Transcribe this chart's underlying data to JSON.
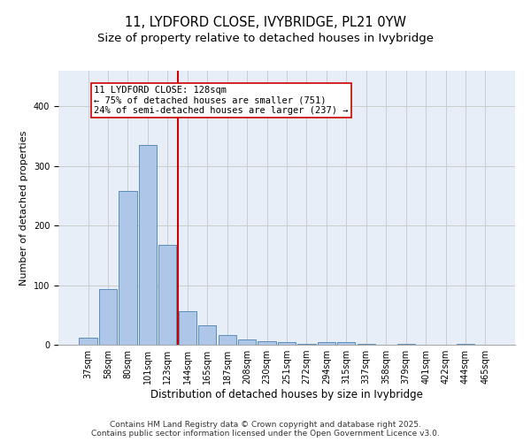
{
  "title": "11, LYDFORD CLOSE, IVYBRIDGE, PL21 0YW",
  "subtitle": "Size of property relative to detached houses in Ivybridge",
  "xlabel": "Distribution of detached houses by size in Ivybridge",
  "ylabel": "Number of detached properties",
  "categories": [
    "37sqm",
    "58sqm",
    "80sqm",
    "101sqm",
    "123sqm",
    "144sqm",
    "165sqm",
    "187sqm",
    "208sqm",
    "230sqm",
    "251sqm",
    "272sqm",
    "294sqm",
    "315sqm",
    "337sqm",
    "358sqm",
    "379sqm",
    "401sqm",
    "422sqm",
    "444sqm",
    "465sqm"
  ],
  "values": [
    12,
    93,
    258,
    335,
    168,
    57,
    32,
    17,
    9,
    6,
    4,
    2,
    5,
    5,
    2,
    0,
    1,
    0,
    0,
    1,
    0
  ],
  "bar_color": "#aec6e8",
  "bar_edge_color": "#5b8db8",
  "grid_color": "#cccccc",
  "bg_color": "#e8eef8",
  "property_line_color": "#cc0000",
  "annotation_text": "11 LYDFORD CLOSE: 128sqm\n← 75% of detached houses are smaller (751)\n24% of semi-detached houses are larger (237) →",
  "annotation_box_color": "#cc0000",
  "footer": "Contains HM Land Registry data © Crown copyright and database right 2025.\nContains public sector information licensed under the Open Government Licence v3.0.",
  "ylim": [
    0,
    460
  ],
  "title_fontsize": 10.5,
  "subtitle_fontsize": 9.5,
  "xlabel_fontsize": 8.5,
  "ylabel_fontsize": 8,
  "tick_fontsize": 7,
  "footer_fontsize": 6.5,
  "annotation_fontsize": 7.5
}
